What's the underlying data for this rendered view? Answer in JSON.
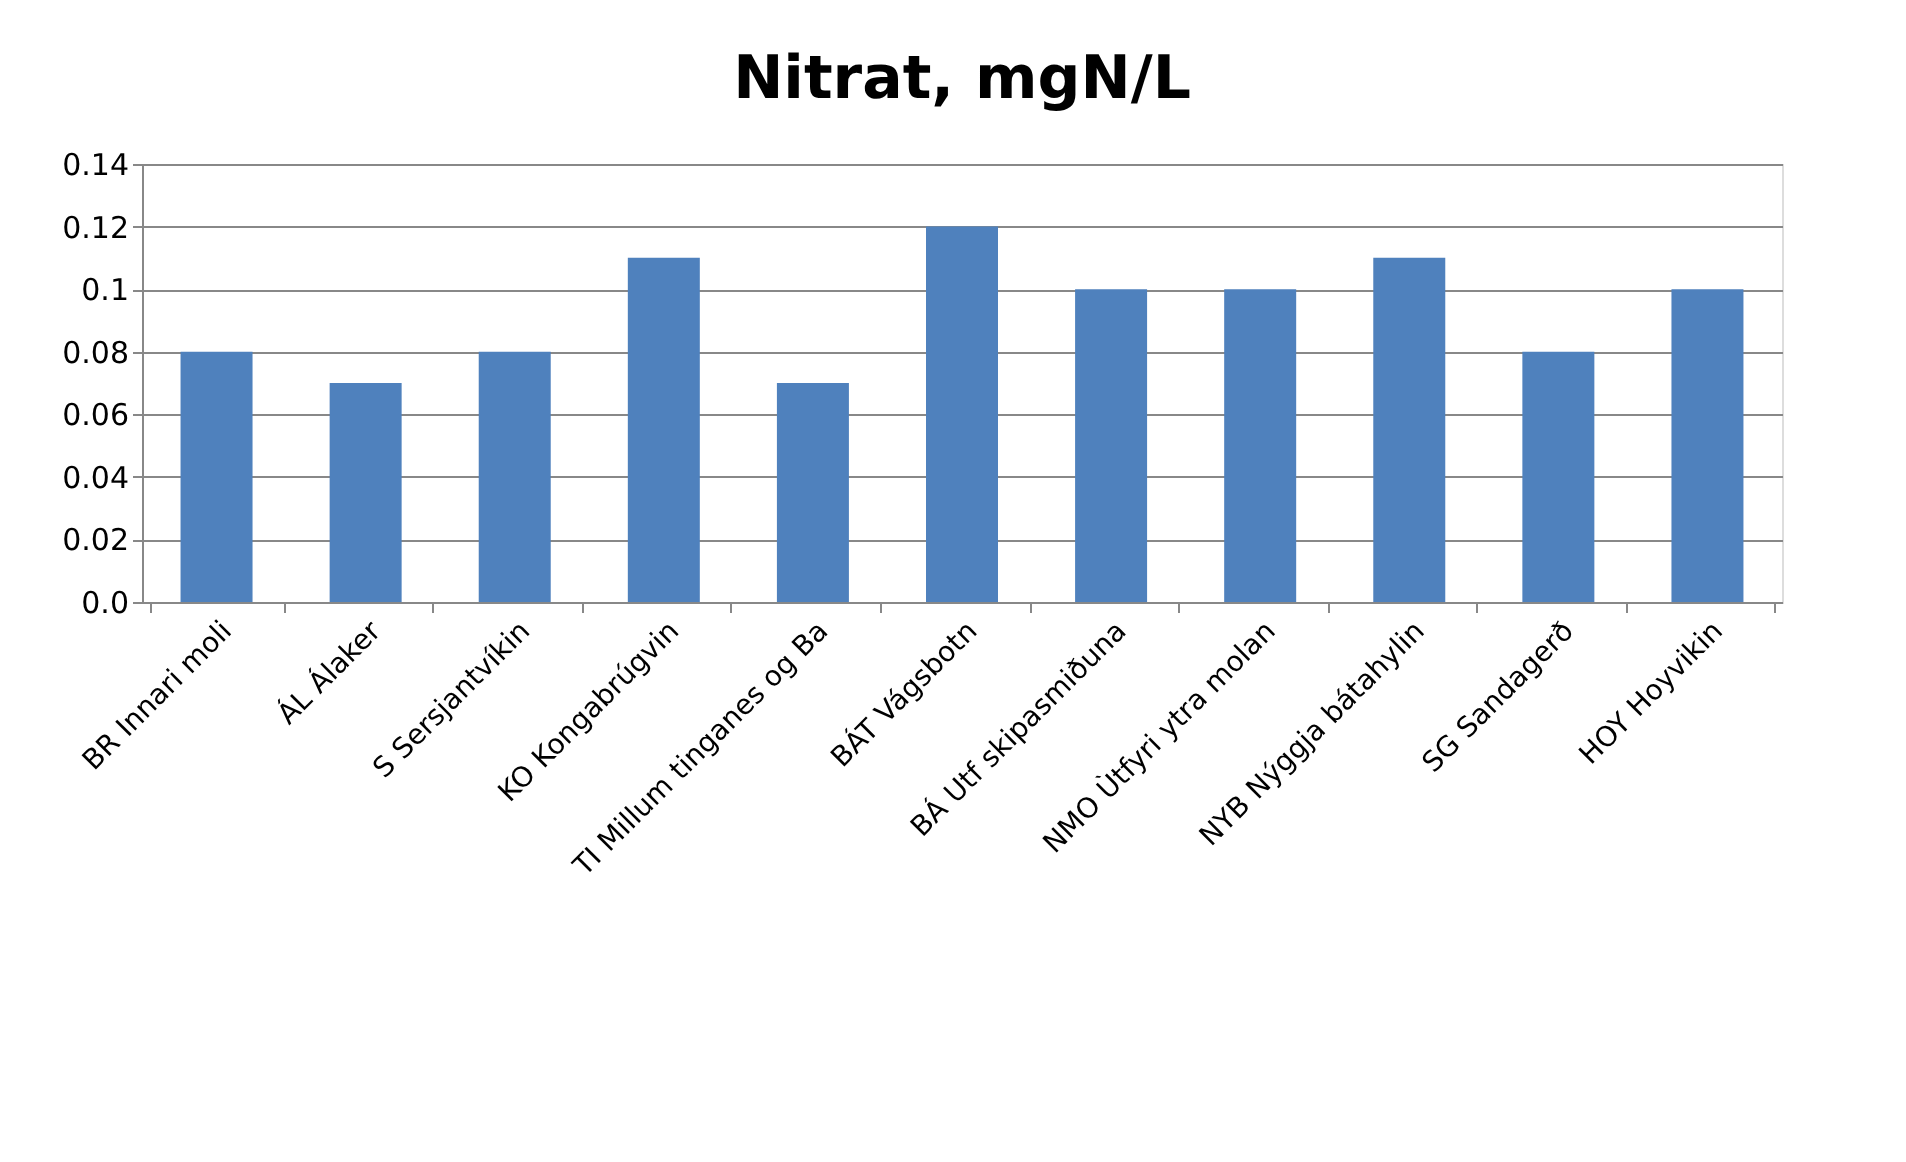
{
  "chart_data": {
    "type": "bar",
    "title": "Nitrat, mgN/L",
    "categories": [
      "BR Innari moli",
      "ÁL Álaker",
      "S Sersjantvíkin",
      "KO Kongabrúgvin",
      "TI Millum tinganes og Ba",
      "BÁT Vágsbotn",
      "BÁ Utf skipasmiðuna",
      "NMO Ùtfyri ytra molan",
      "NYB Nýggja bátahylin",
      "SG Sandagerð",
      "HOY Hoyvikin"
    ],
    "values": [
      0.08,
      0.07,
      0.08,
      0.11,
      0.07,
      0.12,
      0.1,
      0.1,
      0.11,
      0.08,
      0.1
    ],
    "color": "#4f81bd",
    "ylim": [
      0,
      0.14
    ],
    "yticks": [
      {
        "value": 0,
        "label": "0.0"
      },
      0.02,
      0.04,
      0.06,
      0.08,
      0.1,
      0.12,
      0.14
    ],
    "grid": "y"
  }
}
